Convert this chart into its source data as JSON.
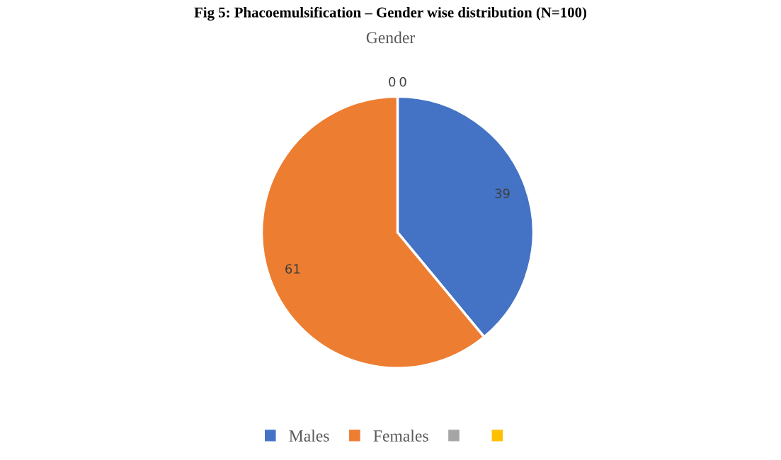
{
  "chart_data": {
    "type": "pie",
    "title": "Fig 5: Phacoemulsification – Gender wise distribution (N=100)",
    "subtitle": "Gender",
    "categories": [
      "Males",
      "Females",
      null,
      null
    ],
    "values": [
      39,
      61,
      0,
      0
    ],
    "colors": [
      "#4472c4",
      "#ed7d31",
      "#a5a5a5",
      "#ffc000"
    ],
    "value_labels": [
      "39",
      "61",
      "0",
      "0"
    ],
    "legend": "bottom"
  }
}
